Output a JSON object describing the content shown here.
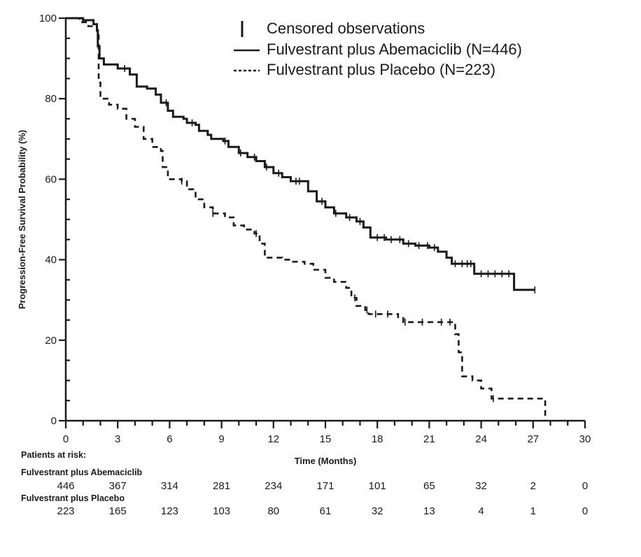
{
  "chart_data": {
    "type": "line",
    "subtype": "kaplan-meier",
    "title": "",
    "xlabel": "Time (Months)",
    "ylabel": "Progression-Free Survival Probability (%)",
    "xlim": [
      0,
      30
    ],
    "ylim": [
      0,
      100
    ],
    "x_ticks": [
      0,
      3,
      6,
      9,
      12,
      15,
      18,
      21,
      24,
      27,
      30
    ],
    "x_minor_step": 1,
    "y_ticks": [
      0,
      20,
      40,
      60,
      80,
      100
    ],
    "y_minor_step": 5,
    "grid": false,
    "legend": {
      "placement": "top-right",
      "entries": [
        {
          "symbol": "censor-tick",
          "label": "Censored observations"
        },
        {
          "symbol": "solid-line",
          "label": "Fulvestrant plus Abemaciclib (N=446)"
        },
        {
          "symbol": "dashed-line",
          "label": "Fulvestrant plus Placebo (N=223)"
        }
      ]
    },
    "series": [
      {
        "name": "Fulvestrant plus Abemaciclib (N=446)",
        "style": "solid",
        "color": "#1a1a1a",
        "points": [
          [
            0,
            100
          ],
          [
            1,
            99.5
          ],
          [
            1.6,
            98.5
          ],
          [
            1.8,
            97
          ],
          [
            1.85,
            93
          ],
          [
            1.95,
            90
          ],
          [
            2.2,
            88.5
          ],
          [
            3,
            87.5
          ],
          [
            3.7,
            86
          ],
          [
            4.1,
            83
          ],
          [
            4.7,
            82.5
          ],
          [
            5.2,
            81
          ],
          [
            5.5,
            79
          ],
          [
            5.9,
            77
          ],
          [
            6.2,
            75.5
          ],
          [
            6.8,
            75
          ],
          [
            7,
            74
          ],
          [
            7.5,
            73.5
          ],
          [
            7.7,
            72
          ],
          [
            8.2,
            71
          ],
          [
            8.4,
            70
          ],
          [
            9.1,
            69.5
          ],
          [
            9.4,
            68
          ],
          [
            10,
            66.5
          ],
          [
            10.5,
            65.5
          ],
          [
            11,
            64.5
          ],
          [
            11.5,
            63
          ],
          [
            12,
            61.5
          ],
          [
            12.5,
            60.5
          ],
          [
            13,
            59.5
          ],
          [
            13.6,
            59.5
          ],
          [
            14,
            57
          ],
          [
            14.5,
            54.5
          ],
          [
            15,
            53
          ],
          [
            15.5,
            51.5
          ],
          [
            16.2,
            50.5
          ],
          [
            16.8,
            49.5
          ],
          [
            17.2,
            48
          ],
          [
            17.6,
            45.5
          ],
          [
            18.5,
            45
          ],
          [
            19.5,
            44
          ],
          [
            20.2,
            43.5
          ],
          [
            21,
            43
          ],
          [
            21.5,
            42
          ],
          [
            22,
            40.5
          ],
          [
            22.3,
            39
          ],
          [
            23.5,
            39
          ],
          [
            23.6,
            36.5
          ],
          [
            25.9,
            36.5
          ],
          [
            25.9,
            32.5
          ],
          [
            27.1,
            32.5
          ]
        ],
        "censored_x": [
          3.4,
          5.8,
          7.3,
          9.2,
          10.1,
          10.9,
          11.6,
          12.3,
          13.3,
          13.5,
          14.8,
          15.6,
          16.4,
          17.0,
          18.0,
          18.4,
          18.8,
          19.3,
          19.8,
          20.4,
          20.9,
          21.3,
          22.5,
          22.9,
          23.2,
          23.4,
          24.0,
          24.4,
          24.8,
          25.2,
          25.6,
          27.1
        ]
      },
      {
        "name": "Fulvestrant plus Placebo (N=223)",
        "style": "dashed",
        "color": "#1a1a1a",
        "points": [
          [
            0,
            100
          ],
          [
            0.8,
            99
          ],
          [
            1.3,
            98
          ],
          [
            1.8,
            96
          ],
          [
            1.9,
            84
          ],
          [
            2,
            80
          ],
          [
            2.5,
            78.5
          ],
          [
            3,
            77.5
          ],
          [
            3.5,
            75
          ],
          [
            4,
            73
          ],
          [
            4.5,
            70
          ],
          [
            5,
            68
          ],
          [
            5.5,
            67
          ],
          [
            5.6,
            63
          ],
          [
            5.9,
            60
          ],
          [
            6.7,
            59.5
          ],
          [
            7,
            57.5
          ],
          [
            7.5,
            55
          ],
          [
            8,
            53
          ],
          [
            8.5,
            51.5
          ],
          [
            9.2,
            50.5
          ],
          [
            9.7,
            48.5
          ],
          [
            10.3,
            47.5
          ],
          [
            10.9,
            46.5
          ],
          [
            11.2,
            44
          ],
          [
            11.5,
            40.5
          ],
          [
            12.5,
            40
          ],
          [
            13,
            39.5
          ],
          [
            13.8,
            39
          ],
          [
            14.3,
            37.5
          ],
          [
            15,
            35.5
          ],
          [
            15.5,
            34.5
          ],
          [
            16.2,
            33
          ],
          [
            16.5,
            30.5
          ],
          [
            16.8,
            28.5
          ],
          [
            17.3,
            27.5
          ],
          [
            17.5,
            26.5
          ],
          [
            18.5,
            26.5
          ],
          [
            19.2,
            25.5
          ],
          [
            19.5,
            24.5
          ],
          [
            22.3,
            24.5
          ],
          [
            22.5,
            21.5
          ],
          [
            22.7,
            17
          ],
          [
            22.9,
            11
          ],
          [
            23.5,
            10
          ],
          [
            24,
            8
          ],
          [
            24.6,
            5.5
          ],
          [
            27.7,
            5.5
          ],
          [
            27.7,
            0
          ]
        ],
        "censored_x": [
          6.7,
          8.5,
          11.0,
          16.7,
          17.4,
          17.9,
          18.6,
          19.6,
          20.6,
          21.7,
          22.2,
          24.7
        ]
      }
    ],
    "at_risk": {
      "title": "Patients at risk:",
      "times": [
        0,
        3,
        6,
        9,
        12,
        15,
        18,
        21,
        24,
        27,
        30
      ],
      "rows": [
        {
          "label": "Fulvestrant plus Abemaciclib",
          "values": [
            446,
            367,
            314,
            281,
            234,
            171,
            101,
            65,
            32,
            2,
            0
          ]
        },
        {
          "label": "Fulvestrant plus Placebo",
          "values": [
            223,
            165,
            123,
            103,
            80,
            61,
            32,
            13,
            4,
            1,
            0
          ]
        }
      ]
    }
  }
}
